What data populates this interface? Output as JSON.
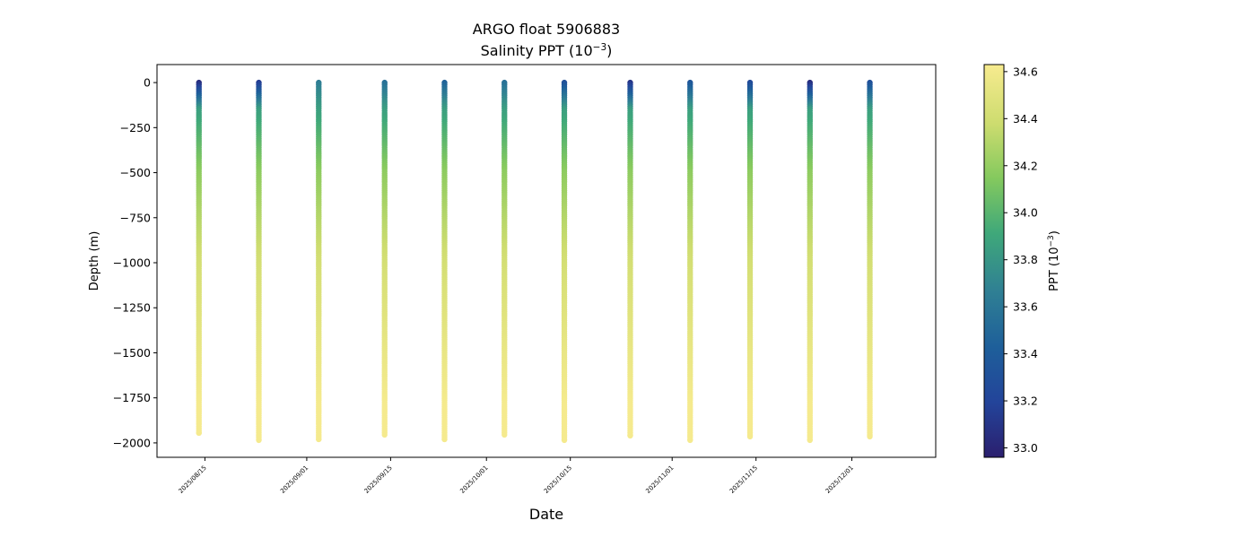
{
  "chart_data": {
    "type": "scatter",
    "title": "ARGO float 5906883",
    "subtitle": "Salinity PPT (10",
    "subtitle_exp": "−3",
    "subtitle_close": ")",
    "xlabel": "Date",
    "ylabel": "Depth (m)",
    "colorbar_label": "PPT (10",
    "colorbar_label_exp": "−3",
    "colorbar_label_close": ")",
    "colormap": "viridis-yellow-green-blue",
    "colorbar_range": [
      32.96,
      34.63
    ],
    "colorbar_ticks": [
      {
        "value": 33.0,
        "label": "33.0"
      },
      {
        "value": 33.2,
        "label": "33.2"
      },
      {
        "value": 33.4,
        "label": "33.4"
      },
      {
        "value": 33.6,
        "label": "33.6"
      },
      {
        "value": 33.8,
        "label": "33.8"
      },
      {
        "value": 34.0,
        "label": "34.0"
      },
      {
        "value": 34.2,
        "label": "34.2"
      },
      {
        "value": 34.4,
        "label": "34.4"
      },
      {
        "value": 34.6,
        "label": "34.6"
      }
    ],
    "ylim": [
      -2080,
      100
    ],
    "y_ticks": [
      {
        "value": 0,
        "label": "0"
      },
      {
        "value": -250,
        "label": "−250"
      },
      {
        "value": -500,
        "label": "−500"
      },
      {
        "value": -750,
        "label": "−750"
      },
      {
        "value": -1000,
        "label": "−1000"
      },
      {
        "value": -1250,
        "label": "−1250"
      },
      {
        "value": -1500,
        "label": "−1500"
      },
      {
        "value": -1750,
        "label": "−1750"
      },
      {
        "value": -2000,
        "label": "−2000"
      }
    ],
    "xlim": [
      "2025-08-07",
      "2025-12-15"
    ],
    "x_ticks": [
      {
        "value": "2025-08-15",
        "label": "2025/08/15"
      },
      {
        "value": "2025-09-01",
        "label": "2025/09/01"
      },
      {
        "value": "2025-09-15",
        "label": "2025/09/15"
      },
      {
        "value": "2025-10-01",
        "label": "2025/10/01"
      },
      {
        "value": "2025-10-15",
        "label": "2025/10/15"
      },
      {
        "value": "2025-11-01",
        "label": "2025/11/01"
      },
      {
        "value": "2025-11-15",
        "label": "2025/11/15"
      },
      {
        "value": "2025-12-01",
        "label": "2025/12/01"
      }
    ],
    "profiles": [
      {
        "date": "2025-08-14",
        "max_depth": -1945,
        "surface_salinity": 33.05
      },
      {
        "date": "2025-08-24",
        "max_depth": -1985,
        "surface_salinity": 33.15
      },
      {
        "date": "2025-09-03",
        "max_depth": -1980,
        "surface_salinity": 33.65
      },
      {
        "date": "2025-09-14",
        "max_depth": -1955,
        "surface_salinity": 33.55
      },
      {
        "date": "2025-09-24",
        "max_depth": -1980,
        "surface_salinity": 33.45
      },
      {
        "date": "2025-10-04",
        "max_depth": -1955,
        "surface_salinity": 33.55
      },
      {
        "date": "2025-10-14",
        "max_depth": -1985,
        "surface_salinity": 33.3
      },
      {
        "date": "2025-10-25",
        "max_depth": -1960,
        "surface_salinity": 33.1
      },
      {
        "date": "2025-11-04",
        "max_depth": -1985,
        "surface_salinity": 33.35
      },
      {
        "date": "2025-11-14",
        "max_depth": -1965,
        "surface_salinity": 33.25
      },
      {
        "date": "2025-11-24",
        "max_depth": -1985,
        "surface_salinity": 33.05
      },
      {
        "date": "2025-12-04",
        "max_depth": -1965,
        "surface_salinity": 33.3
      }
    ]
  }
}
